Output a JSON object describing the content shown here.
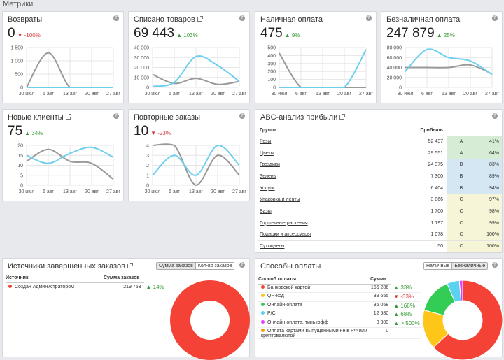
{
  "page_title": "Метрики",
  "colors": {
    "gray": "#999999",
    "blue": "#6fd0ee",
    "up": "#3a9a3a",
    "down": "#d23b3b"
  },
  "cards": [
    {
      "title": "Возвраты",
      "value": "0",
      "delta": "-100%",
      "dir": "down",
      "ext": false,
      "chart_data": {
        "type": "line",
        "x": [
          "30 июл",
          "6 авг",
          "13 авг",
          "20 авг",
          "27 авг"
        ],
        "yticks": [
          "0",
          "500",
          "1 000",
          "1 500"
        ],
        "ylim": [
          0,
          1500
        ],
        "series": [
          {
            "color": "#999999",
            "values": [
              0,
              1300,
              0,
              0,
              0
            ]
          },
          {
            "color": "#6fd0ee",
            "values": [
              0,
              0,
              0,
              0,
              0
            ]
          }
        ]
      }
    },
    {
      "title": "Списано товаров",
      "value": "69 443",
      "delta": "103%",
      "dir": "up",
      "ext": true,
      "chart_data": {
        "type": "line",
        "x": [
          "30 июл",
          "6 авг",
          "13 авг",
          "20 авг",
          "27 авг"
        ],
        "yticks": [
          "0",
          "10 000",
          "20 000",
          "30 000",
          "40 000"
        ],
        "ylim": [
          0,
          40000
        ],
        "series": [
          {
            "color": "#999999",
            "values": [
              13000,
              4000,
              9000,
              3000,
              6000
            ]
          },
          {
            "color": "#6fd0ee",
            "values": [
              1000,
              5000,
              31000,
              22000,
              6000
            ]
          }
        ]
      }
    },
    {
      "title": "Наличная оплата",
      "value": "475",
      "delta": "9%",
      "dir": "up",
      "ext": false,
      "chart_data": {
        "type": "line",
        "x": [
          "30 июл",
          "6 авг",
          "13 авг",
          "20 авг",
          "27 авг"
        ],
        "yticks": [
          "0",
          "100",
          "200",
          "300",
          "400",
          "500"
        ],
        "ylim": [
          0,
          500
        ],
        "series": [
          {
            "color": "#999999",
            "values": [
              430,
              0,
              0,
              0,
              0
            ]
          },
          {
            "color": "#6fd0ee",
            "values": [
              0,
              0,
              0,
              0,
              475
            ]
          }
        ]
      }
    },
    {
      "title": "Безналичная оплата",
      "value": "247 879",
      "delta": "25%",
      "dir": "up",
      "ext": false,
      "chart_data": {
        "type": "line",
        "x": [
          "30 июл",
          "6 авг",
          "13 авг",
          "20 авг",
          "27 авг"
        ],
        "yticks": [
          "0",
          "20 000",
          "40 000",
          "60 000",
          "80 000"
        ],
        "ylim": [
          0,
          80000
        ],
        "series": [
          {
            "color": "#999999",
            "values": [
              40000,
              40000,
              40000,
              45000,
              27000
            ]
          },
          {
            "color": "#6fd0ee",
            "values": [
              32000,
              76000,
              60000,
              53000,
              26000
            ]
          }
        ]
      }
    },
    {
      "title": "Новые клиенты",
      "value": "75",
      "delta": "34%",
      "dir": "up",
      "ext": true,
      "chart_data": {
        "type": "line",
        "x": [
          "30 июл",
          "6 авг",
          "13 авг",
          "20 авг",
          "27 авг"
        ],
        "yticks": [
          "0",
          "5",
          "10",
          "15",
          "20"
        ],
        "ylim": [
          0,
          20
        ],
        "series": [
          {
            "color": "#999999",
            "values": [
              12,
              18,
              12,
              11,
              3
            ]
          },
          {
            "color": "#6fd0ee",
            "values": [
              15,
              11,
              16,
              19,
              14
            ]
          }
        ]
      }
    },
    {
      "title": "Повторные заказы",
      "value": "10",
      "delta": "-23%",
      "dir": "down",
      "ext": false,
      "chart_data": {
        "type": "line",
        "x": [
          "30 июл",
          "6 авг",
          "13 авг",
          "20 авг",
          "27 авг"
        ],
        "yticks": [
          "0",
          "1",
          "2",
          "3",
          "4"
        ],
        "ylim": [
          0,
          4
        ],
        "series": [
          {
            "color": "#999999",
            "values": [
              4,
              4,
              0,
              3,
              1
            ]
          },
          {
            "color": "#6fd0ee",
            "values": [
              1,
              3,
              1,
              4,
              2
            ]
          }
        ]
      }
    }
  ],
  "abc": {
    "title": "ABC-анализ прибыли",
    "col_group": "Группа",
    "col_profit": "Прибыль",
    "rows": [
      {
        "name": "Розы",
        "profit": "52 437",
        "cls": "A",
        "pct": "41%"
      },
      {
        "name": "Цветы",
        "profit": "29 551",
        "cls": "A",
        "pct": "64%"
      },
      {
        "name": "Гвоздики",
        "profit": "24 375",
        "cls": "B",
        "pct": "83%"
      },
      {
        "name": "Зелень",
        "profit": "7 300",
        "cls": "B",
        "pct": "89%"
      },
      {
        "name": "Услуги",
        "profit": "6 404",
        "cls": "B",
        "pct": "94%"
      },
      {
        "name": "Упаковка и ленты",
        "profit": "3 866",
        "cls": "C",
        "pct": "97%"
      },
      {
        "name": "Вазы",
        "profit": "1 700",
        "cls": "C",
        "pct": "98%"
      },
      {
        "name": "Горшечные растения",
        "profit": "1 197",
        "cls": "C",
        "pct": "99%"
      },
      {
        "name": "Подарки и аксессуары",
        "profit": "1 078",
        "cls": "C",
        "pct": "100%"
      },
      {
        "name": "Сухоцветы",
        "profit": "50",
        "cls": "C",
        "pct": "100%"
      }
    ]
  },
  "sources": {
    "title": "Источники завершенных заказов",
    "toggle_on": "Сумма заказов",
    "toggle_off": "Кол-во заказов",
    "col_source": "Источник",
    "col_sum": "Сумма заказов",
    "rows": [
      {
        "name": "Создан Администратором",
        "sum": "219 753",
        "delta": "14%",
        "dir": "up",
        "color": "#f44336"
      }
    ],
    "chart_data": {
      "type": "pie",
      "series": [
        {
          "values": [
            219753
          ],
          "colors": [
            "#f44336"
          ]
        }
      ]
    }
  },
  "payments": {
    "title": "Способы оплаты",
    "toggle_on": "Наличные",
    "toggle_off": "Безналичные",
    "col_method": "Способ оплаты",
    "col_sum": "Сумма",
    "rows": [
      {
        "name": "Банковской картой",
        "sum": "156 286",
        "delta": "33%",
        "dir": "up",
        "color": "#f44336"
      },
      {
        "name": "QR-код",
        "sum": "39 655",
        "delta": "-33%",
        "dir": "down",
        "color": "#ffc61a"
      },
      {
        "name": "Онлайн-оплата",
        "sum": "36 058",
        "delta": "168%",
        "dir": "up",
        "color": "#33cc55"
      },
      {
        "name": "Р/С",
        "sum": "12 580",
        "delta": "68%",
        "dir": "up",
        "color": "#5bd3f0"
      },
      {
        "name": "Онлайн-оплата, тинькофф",
        "sum": "3 300",
        "delta": "> 500%",
        "dir": "up",
        "color": "#e040fb"
      },
      {
        "name": "Оплата картами выпущенными не в РФ или криптовалютой",
        "sum": "0",
        "delta": "",
        "dir": "",
        "color": "#ff9800"
      }
    ],
    "chart_data": {
      "type": "pie",
      "series": [
        {
          "values": [
            156286,
            39655,
            36058,
            12580,
            3300
          ],
          "colors": [
            "#f44336",
            "#ffc61a",
            "#33cc55",
            "#5bd3f0",
            "#e040fb"
          ]
        }
      ]
    }
  }
}
